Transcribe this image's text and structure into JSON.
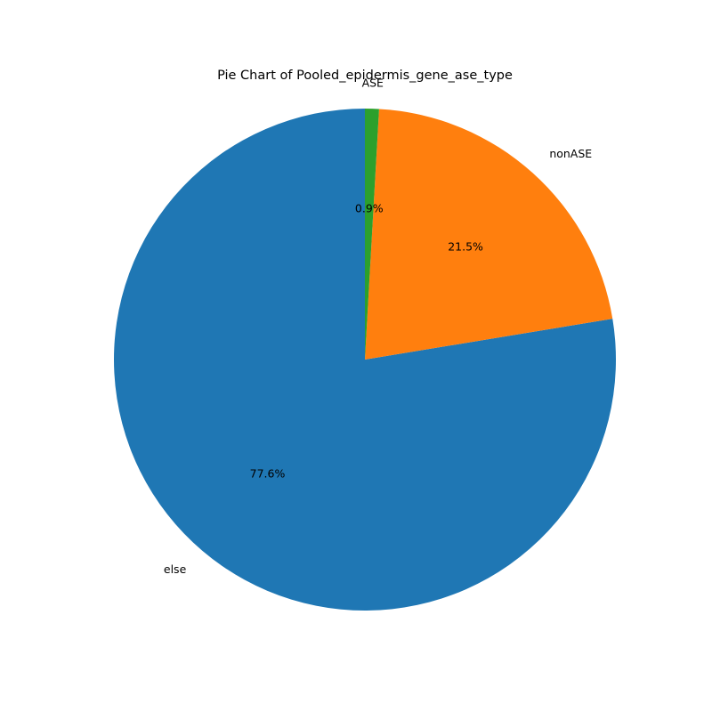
{
  "chart_data": {
    "type": "pie",
    "title": "Pie Chart of Pooled_epidermis_gene_ase_type",
    "start_angle_deg": 90,
    "direction": "counterclockwise",
    "slices": [
      {
        "label": "else",
        "value": 77.6,
        "pct_label": "77.6%",
        "color": "#1f77b4"
      },
      {
        "label": "nonASE",
        "value": 21.5,
        "pct_label": "21.5%",
        "color": "#ff7f0e"
      },
      {
        "label": "ASE",
        "value": 0.9,
        "pct_label": "0.9%",
        "color": "#2ca02c"
      }
    ]
  }
}
